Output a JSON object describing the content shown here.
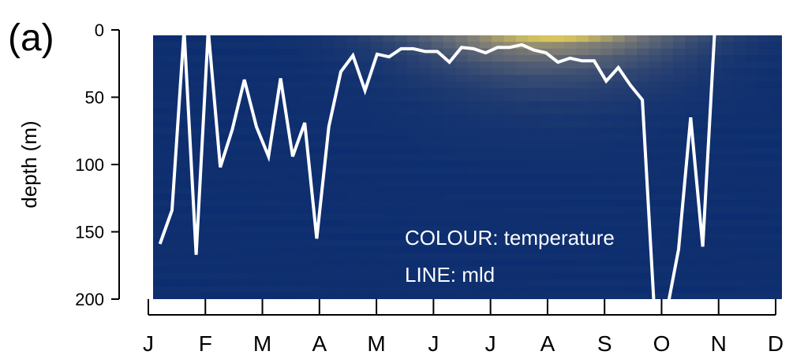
{
  "chart_data": {
    "type": "heatmap",
    "panel_label": "(a)",
    "ylabel": "depth (m)",
    "ylim": [
      200,
      0
    ],
    "yticks": [
      0,
      50,
      100,
      150,
      200
    ],
    "month_labels": [
      "J",
      "F",
      "M",
      "A",
      "M",
      "J",
      "J",
      "A",
      "S",
      "O",
      "N",
      "D"
    ],
    "xlim": [
      0,
      365
    ],
    "legend_text": [
      "COLOUR: temperature",
      "LINE: mld"
    ],
    "colors": {
      "cold": "#0c2d6f",
      "mid": "#7e7d77",
      "warm": "#e8d25a",
      "line": "#ffffff"
    },
    "heatmap": {
      "time_start": 3,
      "time_step": 7,
      "n_time": 52,
      "depth_start": 4,
      "depth_step": 5,
      "n_depth": 40,
      "warm_layer_center": 228,
      "warm_layer_width": 75,
      "surface_depth_scale": 22
    },
    "series": [
      {
        "name": "mld",
        "x": [
          4,
          11,
          18,
          25,
          32,
          39,
          46,
          53,
          60,
          67,
          74,
          81,
          88,
          95,
          102,
          109,
          116,
          123,
          130,
          137,
          144,
          151,
          158,
          165,
          172,
          179,
          186,
          193,
          200,
          207,
          214,
          221,
          228,
          235,
          242,
          249,
          256,
          263,
          270,
          277,
          284,
          291,
          298,
          305,
          312,
          319,
          326,
          333,
          340,
          347,
          354,
          361
        ],
        "y": [
          159,
          134,
          0,
          167,
          0,
          102,
          74,
          37,
          72,
          94,
          36,
          94,
          69,
          155,
          72,
          31,
          19,
          45,
          18,
          20,
          14,
          14,
          16,
          16,
          24,
          13,
          14,
          17,
          13,
          13,
          11,
          15,
          17,
          24,
          21,
          23,
          23,
          38,
          28,
          41,
          52,
          210,
          210,
          163,
          65,
          161,
          0,
          0,
          0,
          0,
          0,
          0
        ]
      }
    ]
  }
}
